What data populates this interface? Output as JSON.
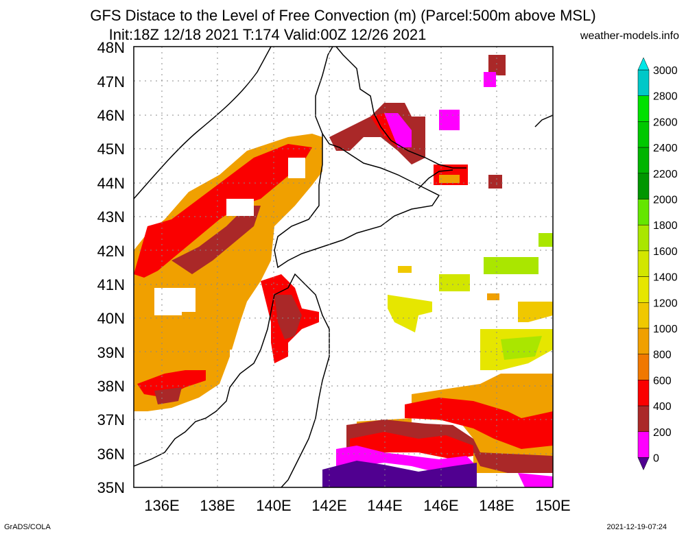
{
  "title_line1": "GFS Distace to the Level of Free Convection (m) (Parcel:500m above MSL)",
  "title_line2": "Init:18Z 12/18 2021 T:174 Valid:00Z 12/26 2021",
  "site": "weather-models.info",
  "footer_left": "GrADS/COLA",
  "footer_right": "2021-12-19-07:24",
  "lat_labels": [
    "48N",
    "47N",
    "46N",
    "45N",
    "44N",
    "43N",
    "42N",
    "41N",
    "40N",
    "39N",
    "38N",
    "37N",
    "36N",
    "35N"
  ],
  "lon_labels": [
    "136E",
    "138E",
    "140E",
    "142E",
    "144E",
    "146E",
    "148E",
    "150E"
  ],
  "colorbar": {
    "labels": [
      "3000",
      "2800",
      "2600",
      "2400",
      "2200",
      "2000",
      "1800",
      "1600",
      "1400",
      "1200",
      "1000",
      "800",
      "600",
      "400",
      "200",
      "0"
    ],
    "colors": [
      "#00e6e6",
      "#00c8c8",
      "#00e100",
      "#00c800",
      "#00b400",
      "#009600",
      "#64e600",
      "#aae600",
      "#d2e600",
      "#e6e600",
      "#f0c800",
      "#f0a000",
      "#f07800",
      "#fa0000",
      "#aa2828",
      "#ff00ff",
      "#500090"
    ]
  }
}
